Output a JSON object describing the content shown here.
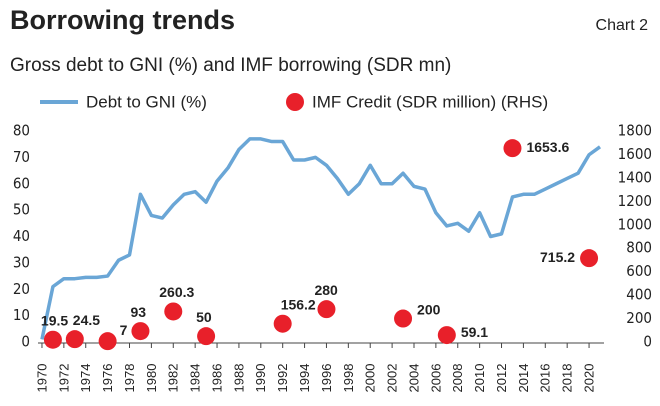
{
  "chart_data": {
    "type": "line-scatter",
    "title": "Borrowing trends",
    "tag": "Chart 2",
    "subtitle": "Gross debt to GNI (%) and IMF borrowing (SDR mn)",
    "xlim": [
      1969.5,
      2021
    ],
    "xticks": [
      1970,
      1972,
      1974,
      1976,
      1978,
      1980,
      1982,
      1984,
      1986,
      1988,
      1990,
      1992,
      1994,
      1996,
      1998,
      2000,
      2002,
      2004,
      2006,
      2008,
      2010,
      2012,
      2014,
      2016,
      2018,
      2020
    ],
    "ylim": [
      0,
      80
    ],
    "yticks": [
      0,
      10,
      20,
      30,
      40,
      50,
      60,
      70,
      80
    ],
    "y2lim": [
      0,
      1800
    ],
    "y2ticks": [
      0,
      200,
      400,
      600,
      800,
      1000,
      1200,
      1400,
      1600,
      1800
    ],
    "line": {
      "name": "Debt to GNI (%)",
      "color": "#6aa6d6",
      "x": [
        1970,
        1971,
        1972,
        1973,
        1974,
        1975,
        1976,
        1977,
        1978,
        1979,
        1980,
        1981,
        1982,
        1983,
        1984,
        1985,
        1986,
        1987,
        1988,
        1989,
        1990,
        1991,
        1992,
        1993,
        1994,
        1995,
        1996,
        1997,
        1998,
        1999,
        2000,
        2001,
        2002,
        2003,
        2004,
        2005,
        2006,
        2007,
        2008,
        2009,
        2010,
        2011,
        2012,
        2013,
        2014,
        2015,
        2016,
        2017,
        2018,
        2019,
        2020,
        2021
      ],
      "values": [
        1,
        21,
        24,
        24,
        24.5,
        24.5,
        25,
        31,
        33,
        56,
        48,
        47,
        52,
        56,
        57,
        53,
        61,
        66,
        73,
        77,
        77,
        76,
        76,
        69,
        69,
        70,
        67,
        62,
        56,
        60,
        67,
        60,
        60,
        64,
        59,
        58,
        49,
        44,
        45,
        42,
        49,
        40,
        41,
        55,
        56,
        56,
        58,
        60,
        62,
        64,
        71,
        74
      ]
    },
    "points": {
      "name": "IMF Credit (SDR million) (RHS)",
      "color": "#e8202a",
      "axis": "y2",
      "x": [
        1971,
        1973,
        1976,
        1979,
        1982,
        1985,
        1992,
        1996,
        2003,
        2007,
        2013,
        2020
      ],
      "values": [
        19.5,
        24.5,
        7,
        93,
        260.3,
        50,
        156.2,
        280,
        200,
        59.1,
        1653.6,
        715.2
      ]
    }
  }
}
